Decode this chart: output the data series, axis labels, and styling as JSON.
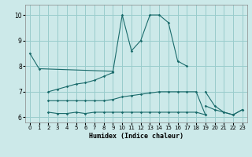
{
  "xlabel": "Humidex (Indice chaleur)",
  "xlim": [
    -0.5,
    23.5
  ],
  "ylim": [
    5.8,
    10.4
  ],
  "yticks": [
    6,
    7,
    8,
    9,
    10
  ],
  "xticks": [
    0,
    1,
    2,
    3,
    4,
    5,
    6,
    7,
    8,
    9,
    10,
    11,
    12,
    13,
    14,
    15,
    16,
    17,
    18,
    19,
    20,
    21,
    22,
    23
  ],
  "bg_color": "#cce9e9",
  "grid_color": "#99cccc",
  "line_color": "#1a6b6b",
  "series": {
    "line_main": [
      8.5,
      7.9,
      null,
      null,
      null,
      null,
      null,
      null,
      null,
      7.8,
      10.0,
      8.6,
      9.0,
      10.0,
      10.0,
      9.7,
      8.2,
      8.0,
      null,
      null,
      null,
      null,
      null,
      null
    ],
    "line_avg": [
      null,
      null,
      7.0,
      7.1,
      7.2,
      7.3,
      7.35,
      7.45,
      7.6,
      7.75,
      null,
      null,
      null,
      null,
      null,
      null,
      null,
      null,
      null,
      null,
      null,
      null,
      null,
      null
    ],
    "line_upper": [
      null,
      null,
      6.65,
      6.65,
      6.65,
      6.65,
      6.65,
      6.65,
      6.65,
      6.7,
      6.8,
      6.85,
      6.9,
      6.95,
      7.0,
      7.0,
      7.0,
      7.0,
      7.0,
      6.1,
      null,
      null,
      null,
      null
    ],
    "line_lower": [
      null,
      null,
      6.2,
      6.15,
      6.15,
      6.2,
      6.15,
      6.2,
      6.2,
      6.2,
      6.2,
      6.2,
      6.2,
      6.2,
      6.2,
      6.2,
      6.2,
      6.2,
      6.2,
      6.1,
      null,
      null,
      null,
      null
    ],
    "line_tail1": [
      null,
      null,
      null,
      null,
      null,
      null,
      null,
      null,
      null,
      null,
      null,
      null,
      null,
      null,
      null,
      null,
      null,
      null,
      null,
      6.45,
      6.3,
      6.2,
      6.1,
      6.3
    ],
    "line_tail2": [
      null,
      null,
      null,
      null,
      null,
      null,
      null,
      null,
      null,
      null,
      null,
      null,
      null,
      null,
      null,
      null,
      null,
      null,
      null,
      7.0,
      6.45,
      6.2,
      6.1,
      6.3
    ]
  }
}
